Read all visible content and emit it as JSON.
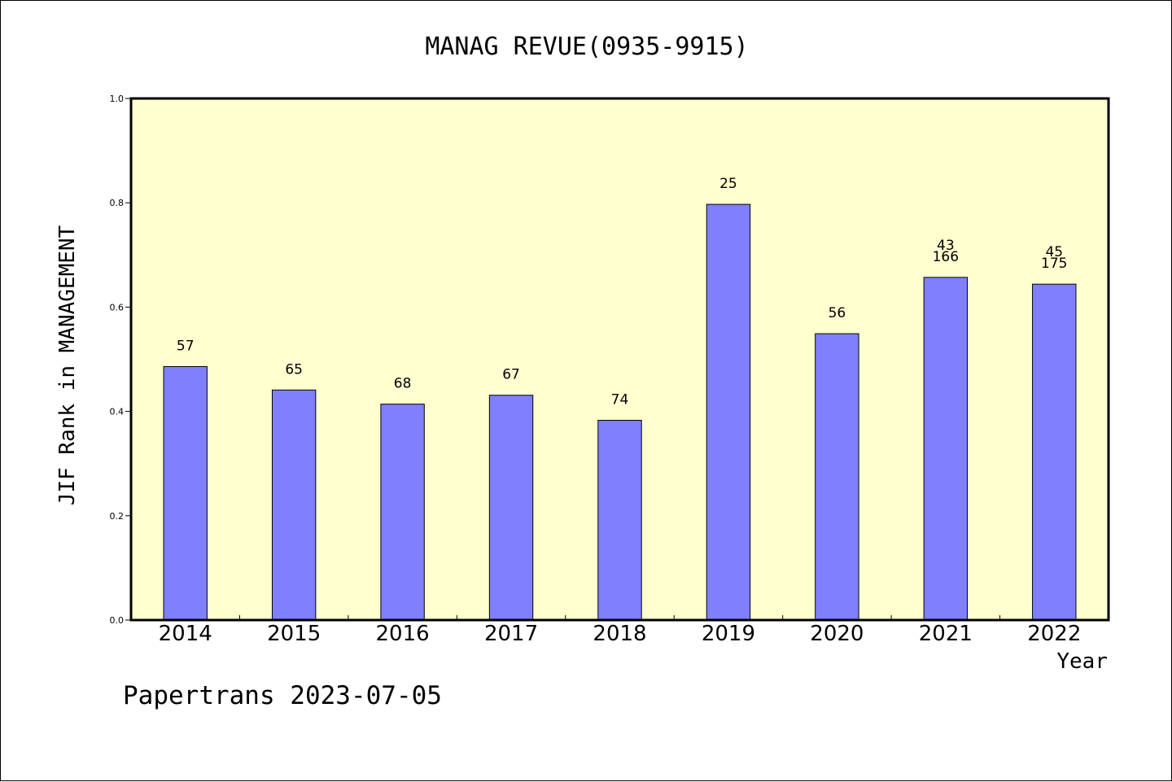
{
  "chart_data": {
    "type": "bar",
    "title": "MANAG REVUE(0935-9915)",
    "xlabel": "Year",
    "ylabel": "JIF Rank in MANAGEMENT",
    "categories": [
      "2014",
      "2015",
      "2016",
      "2017",
      "2018",
      "2019",
      "2020",
      "2021",
      "2022"
    ],
    "values": [
      0.486,
      0.441,
      0.414,
      0.431,
      0.383,
      0.797,
      0.549,
      0.657,
      0.644
    ],
    "labels": [
      [
        "57"
      ],
      [
        "65"
      ],
      [
        "68"
      ],
      [
        "67"
      ],
      [
        "74"
      ],
      [
        "25"
      ],
      [
        "56"
      ],
      [
        "43",
        "166"
      ],
      [
        "45",
        "175"
      ]
    ],
    "ylim": [
      0,
      1.0
    ],
    "yticks": [
      "0.0",
      "0.2",
      "0.4",
      "0.6",
      "0.8",
      "1.0"
    ],
    "grid": false,
    "colors": {
      "plot_background": "#ffffd0",
      "bar_fill": "#8080ff",
      "bar_stroke": "#000000"
    }
  },
  "footer": "Papertrans 2023-07-05"
}
